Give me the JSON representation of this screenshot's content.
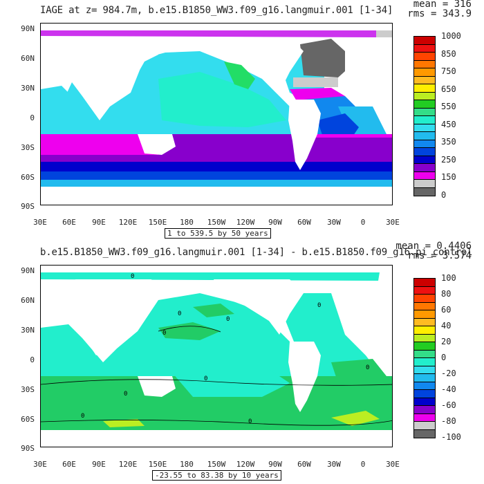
{
  "panels": [
    {
      "title": "IAGE at z= 984.7m, b.e15.B1850_WW3.f09_g16.langmuir.001 [1-34]",
      "mean_text": "mean = 316",
      "rms_text": "rms = 343.9",
      "range_text": "1 to 539.5 by 50 years",
      "colorbar": {
        "colors": [
          "#cc0000",
          "#ee1111",
          "#ff4400",
          "#ff7700",
          "#ff9900",
          "#ffbb22",
          "#ffee00",
          "#bbee22",
          "#22cc22",
          "#33dd88",
          "#22eecc",
          "#33ddee",
          "#22bbee",
          "#1188ee",
          "#0044dd",
          "#0000cc",
          "#8800cc",
          "#ee00ee",
          "#cccccc",
          "#666666"
        ],
        "labels": [
          "1000",
          "850",
          "750",
          "650",
          "550",
          "450",
          "350",
          "250",
          "150",
          "0"
        ]
      }
    },
    {
      "title": "b.e15.B1850_WW3.f09_g16.langmuir.001 [1-34] - b.e15.B1850.f09_g16.pi_control",
      "mean_text": "mean = 0.4406",
      "rms_text": "rms = 3.574",
      "range_text": "-23.55 to 83.38 by 10 years",
      "colorbar": {
        "colors": [
          "#cc0000",
          "#ee1111",
          "#ff4400",
          "#ff7700",
          "#ff9900",
          "#ffbb22",
          "#ffee00",
          "#bbee22",
          "#22cc22",
          "#33dd88",
          "#22eecc",
          "#33ddee",
          "#22bbee",
          "#1188ee",
          "#0044dd",
          "#0000cc",
          "#8800cc",
          "#ee00ee",
          "#cccccc",
          "#666666"
        ],
        "labels": [
          "100",
          "80",
          "60",
          "40",
          "20",
          "0",
          "-20",
          "-40",
          "-60",
          "-80",
          "-100"
        ]
      }
    }
  ],
  "axes": {
    "lat_labels": [
      "90N",
      "60N",
      "30N",
      "0",
      "30S",
      "60S",
      "90S"
    ],
    "lon_labels": [
      "30E",
      "60E",
      "90E",
      "120E",
      "150E",
      "180",
      "150W",
      "120W",
      "90W",
      "60W",
      "30W",
      "0",
      "30E"
    ]
  },
  "contour_labels": [
    "0",
    "0",
    "0",
    "0",
    "0",
    "0",
    "0",
    "0",
    "0",
    "0"
  ]
}
